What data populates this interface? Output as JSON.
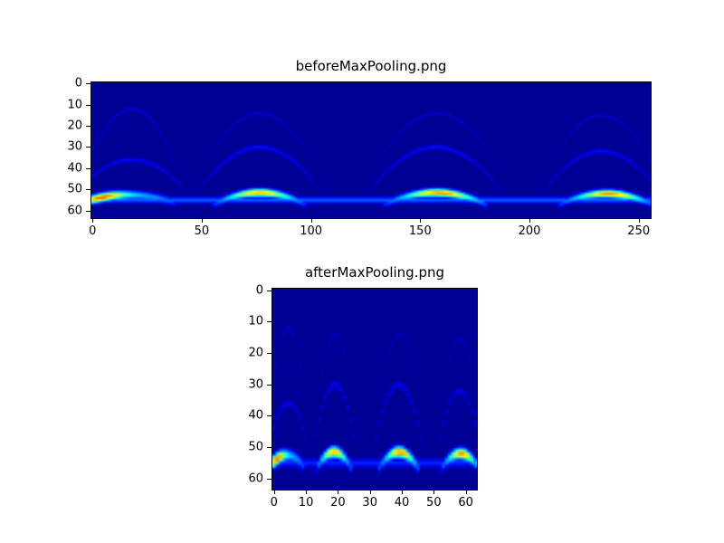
{
  "figure": {
    "background": "#ffffff",
    "axis_color": "#000000"
  },
  "chart_data": [
    {
      "type": "heatmap",
      "title": "beforeMaxPooling.png",
      "colormap": "jet",
      "cols": 256,
      "rows": 64,
      "x_ticks": [
        0,
        50,
        100,
        150,
        200,
        250
      ],
      "y_ticks": [
        0,
        10,
        20,
        30,
        40,
        50,
        60
      ],
      "background_value": 0.02,
      "baseline": {
        "y": 55,
        "intensity": 0.22,
        "sigma": 1.1
      },
      "arcs": [
        {
          "x0": -5,
          "x1": 38,
          "y_top": 52.5,
          "y_base": 56.5,
          "peak": 0.9,
          "peak_t": 0.18,
          "spread": 0.17,
          "tail": 0.3,
          "width": 2.8
        },
        {
          "x0": 55,
          "x1": 98,
          "y_top": 51.5,
          "y_base": 57.5,
          "peak": 0.72,
          "peak_t": 0.5,
          "spread": 0.2,
          "tail": 0.28,
          "width": 2.5
        },
        {
          "x0": 133,
          "x1": 181,
          "y_top": 51.5,
          "y_base": 57.5,
          "peak": 0.76,
          "peak_t": 0.55,
          "spread": 0.2,
          "tail": 0.28,
          "width": 2.5
        },
        {
          "x0": 213,
          "x1": 257,
          "y_top": 52,
          "y_base": 57.5,
          "peak": 0.74,
          "peak_t": 0.55,
          "spread": 0.2,
          "tail": 0.28,
          "width": 2.5
        }
      ],
      "ghosts": [
        {
          "x0": -8,
          "x1": 44,
          "y_top": 36,
          "y_base": 53,
          "peak": 0.13,
          "peak_t": 0.5,
          "spread": 0.45,
          "tail": 0.05,
          "width": 1.5
        },
        {
          "x0": 48,
          "x1": 105,
          "y_top": 30,
          "y_base": 53,
          "peak": 0.14,
          "peak_t": 0.5,
          "spread": 0.45,
          "tail": 0.05,
          "width": 1.5
        },
        {
          "x0": 126,
          "x1": 188,
          "y_top": 30,
          "y_base": 53,
          "peak": 0.14,
          "peak_t": 0.5,
          "spread": 0.45,
          "tail": 0.05,
          "width": 1.5
        },
        {
          "x0": 206,
          "x1": 260,
          "y_top": 32,
          "y_base": 53,
          "peak": 0.13,
          "peak_t": 0.5,
          "spread": 0.45,
          "tail": 0.05,
          "width": 1.5
        },
        {
          "x0": -6,
          "x1": 42,
          "y_top": 12,
          "y_base": 50,
          "peak": 0.09,
          "peak_t": 0.5,
          "spread": 0.5,
          "tail": 0.04,
          "width": 1.3
        },
        {
          "x0": 47,
          "x1": 106,
          "y_top": 14,
          "y_base": 50,
          "peak": 0.08,
          "peak_t": 0.5,
          "spread": 0.5,
          "tail": 0.04,
          "width": 1.3
        },
        {
          "x0": 125,
          "x1": 190,
          "y_top": 14,
          "y_base": 50,
          "peak": 0.08,
          "peak_t": 0.5,
          "spread": 0.5,
          "tail": 0.04,
          "width": 1.3
        },
        {
          "x0": 205,
          "x1": 261,
          "y_top": 15,
          "y_base": 50,
          "peak": 0.08,
          "peak_t": 0.5,
          "spread": 0.5,
          "tail": 0.04,
          "width": 1.3
        }
      ]
    },
    {
      "type": "heatmap",
      "title": "afterMaxPooling.png",
      "colormap": "jet",
      "cols": 64,
      "rows": 64,
      "x_ticks": [
        0,
        10,
        20,
        30,
        40,
        50,
        60
      ],
      "y_ticks": [
        0,
        10,
        20,
        30,
        40,
        50,
        60
      ],
      "background_value": 0.02,
      "baseline": {
        "y": 55,
        "intensity": 0.16,
        "sigma": 1.0
      },
      "arcs": [
        {
          "x0": -1.5,
          "x1": 9.5,
          "y_top": 52.5,
          "y_base": 56.5,
          "peak": 0.9,
          "peak_t": 0.18,
          "spread": 0.17,
          "tail": 0.3,
          "width": 2.6
        },
        {
          "x0": 13,
          "x1": 24.5,
          "y_top": 51.5,
          "y_base": 57.5,
          "peak": 0.72,
          "peak_t": 0.5,
          "spread": 0.2,
          "tail": 0.28,
          "width": 2.4
        },
        {
          "x0": 32.5,
          "x1": 45.5,
          "y_top": 51.5,
          "y_base": 57.5,
          "peak": 0.76,
          "peak_t": 0.55,
          "spread": 0.2,
          "tail": 0.28,
          "width": 2.4
        },
        {
          "x0": 52,
          "x1": 64.5,
          "y_top": 52,
          "y_base": 57.5,
          "peak": 0.74,
          "peak_t": 0.55,
          "spread": 0.2,
          "tail": 0.28,
          "width": 2.4
        }
      ],
      "ghosts": [
        {
          "x0": -2,
          "x1": 11,
          "y_top": 36,
          "y_base": 53,
          "peak": 0.12,
          "peak_t": 0.5,
          "spread": 0.45,
          "tail": 0.05,
          "width": 1.4
        },
        {
          "x0": 12,
          "x1": 26,
          "y_top": 30,
          "y_base": 53,
          "peak": 0.13,
          "peak_t": 0.5,
          "spread": 0.45,
          "tail": 0.05,
          "width": 1.4
        },
        {
          "x0": 31,
          "x1": 47,
          "y_top": 30,
          "y_base": 53,
          "peak": 0.13,
          "peak_t": 0.5,
          "spread": 0.45,
          "tail": 0.05,
          "width": 1.4
        },
        {
          "x0": 51,
          "x1": 65,
          "y_top": 32,
          "y_base": 53,
          "peak": 0.12,
          "peak_t": 0.5,
          "spread": 0.45,
          "tail": 0.05,
          "width": 1.4
        },
        {
          "x0": -1.5,
          "x1": 10.5,
          "y_top": 12,
          "y_base": 50,
          "peak": 0.08,
          "peak_t": 0.5,
          "spread": 0.5,
          "tail": 0.04,
          "width": 1.2
        },
        {
          "x0": 12,
          "x1": 26.5,
          "y_top": 14,
          "y_base": 50,
          "peak": 0.07,
          "peak_t": 0.5,
          "spread": 0.5,
          "tail": 0.04,
          "width": 1.2
        },
        {
          "x0": 31,
          "x1": 47.5,
          "y_top": 14,
          "y_base": 50,
          "peak": 0.07,
          "peak_t": 0.5,
          "spread": 0.5,
          "tail": 0.04,
          "width": 1.2
        },
        {
          "x0": 51,
          "x1": 65,
          "y_top": 15,
          "y_base": 50,
          "peak": 0.07,
          "peak_t": 0.5,
          "spread": 0.5,
          "tail": 0.04,
          "width": 1.2
        }
      ]
    }
  ]
}
